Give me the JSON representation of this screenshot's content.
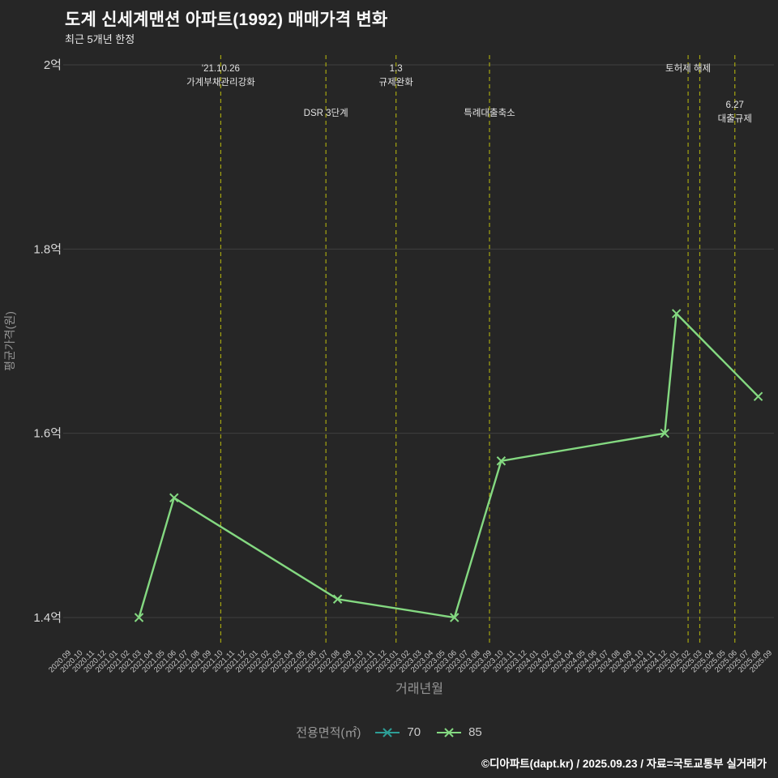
{
  "header": {
    "title": "도계 신세계맨션 아파트(1992) 매매가격 변화",
    "subtitle": "최근 5개년 한정"
  },
  "footer": {
    "credit": "©디아파트(dapt.kr) / 2025.09.23 / 자료=국토교통부 실거래가"
  },
  "legend": {
    "label": "전용면적(㎡)",
    "items": [
      {
        "name": "70",
        "color": "#2d9e96"
      },
      {
        "name": "85",
        "color": "#84d981"
      }
    ]
  },
  "colors": {
    "background": "#262626",
    "grid": "#404040",
    "annotation_line": "#a5a510",
    "annotation_text": "#e3e3e3",
    "x_tick_text": "#c9c9c9",
    "y_tick_text": "#d9d9d9",
    "axis_label": "#969696"
  },
  "chart_data": {
    "type": "line",
    "title": "도계 신세계맨션 아파트(1992) 매매가격 변화",
    "subtitle": "최근 5개년 한정",
    "xlabel": "거래년월",
    "ylabel": "평균가격(원)",
    "x_categories": [
      "2020.09",
      "2020.10",
      "2020.11",
      "2020.12",
      "2021.01",
      "2021.02",
      "2021.03",
      "2021.04",
      "2021.05",
      "2021.06",
      "2021.07",
      "2021.08",
      "2021.09",
      "2021.10",
      "2021.11",
      "2021.12",
      "2022.01",
      "2022.02",
      "2022.03",
      "2022.04",
      "2022.05",
      "2022.06",
      "2022.07",
      "2022.08",
      "2022.09",
      "2022.10",
      "2022.11",
      "2022.12",
      "2023.01",
      "2023.02",
      "2023.03",
      "2023.04",
      "2023.05",
      "2023.06",
      "2023.07",
      "2023.08",
      "2023.09",
      "2023.10",
      "2023.11",
      "2023.12",
      "2024.01",
      "2024.02",
      "2024.03",
      "2024.04",
      "2024.05",
      "2024.06",
      "2024.07",
      "2024.08",
      "2024.09",
      "2024.10",
      "2024.11",
      "2024.12",
      "2025.01",
      "2025.02",
      "2025.03",
      "2025.04",
      "2025.05",
      "2025.06",
      "2025.07",
      "2025.08",
      "2025.09"
    ],
    "y_ticks": [
      {
        "value": 2.0,
        "label": "2억"
      },
      {
        "value": 1.8,
        "label": "1.8억"
      },
      {
        "value": 1.6,
        "label": "1.6억"
      },
      {
        "value": 1.4,
        "label": "1.4억"
      }
    ],
    "ylim": [
      1.37,
      2.0
    ],
    "grid": "horizontal-only",
    "legend_position": "bottom",
    "series": [
      {
        "name": "70",
        "color": "#2d9e96",
        "points": []
      },
      {
        "name": "85",
        "color": "#84d981",
        "points": [
          {
            "x": "2021.03",
            "y": 1.4
          },
          {
            "x": "2021.06",
            "y": 1.53
          },
          {
            "x": "2022.08",
            "y": 1.42
          },
          {
            "x": "2023.06",
            "y": 1.4
          },
          {
            "x": "2023.10",
            "y": 1.57
          },
          {
            "x": "2024.12",
            "y": 1.6
          },
          {
            "x": "2025.01",
            "y": 1.73
          },
          {
            "x": "2025.08",
            "y": 1.64
          }
        ]
      }
    ],
    "annotations": [
      {
        "x": "2021.10",
        "lines": [
          "'21.10.26",
          "가계부채관리강화"
        ],
        "row": 0
      },
      {
        "x": "2022.07",
        "lines": [
          "DSR 3단계"
        ],
        "row": 1
      },
      {
        "x": "2023.01",
        "lines": [
          "1.3",
          "규제완화"
        ],
        "row": 0
      },
      {
        "x": "2023.09",
        "lines": [
          "특례대출축소"
        ],
        "row": 1
      },
      {
        "x": "2025.02",
        "lines": [
          "토허제 해제"
        ],
        "row": 0
      },
      {
        "x": "2025.03",
        "lines": [],
        "row": 0
      },
      {
        "x": "2025.06",
        "lines": [
          "6.27",
          "대출규제"
        ],
        "row": 1
      }
    ]
  }
}
